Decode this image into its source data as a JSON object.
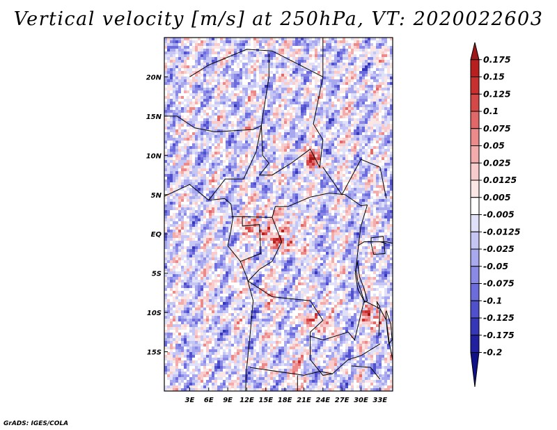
{
  "chart_data": {
    "type": "heatmap",
    "title": "Vertical velocity [m/s] at 250hPa, VT: 2020022603",
    "variable": "Vertical velocity",
    "units": "m/s",
    "level": "250hPa",
    "valid_time": "2020022603",
    "lon_range": [
      -1,
      35
    ],
    "lat_range": [
      -20,
      25
    ],
    "x_ticks": [
      {
        "value": 3,
        "label": "3E"
      },
      {
        "value": 6,
        "label": "6E"
      },
      {
        "value": 9,
        "label": "9E"
      },
      {
        "value": 12,
        "label": "12E"
      },
      {
        "value": 15,
        "label": "15E"
      },
      {
        "value": 18,
        "label": "18E"
      },
      {
        "value": 21,
        "label": "21E"
      },
      {
        "value": 24,
        "label": "24E"
      },
      {
        "value": 27,
        "label": "27E"
      },
      {
        "value": 30,
        "label": "30E"
      },
      {
        "value": 33,
        "label": "33E"
      }
    ],
    "y_ticks": [
      {
        "value": 20,
        "label": "20N"
      },
      {
        "value": 15,
        "label": "15N"
      },
      {
        "value": 10,
        "label": "10N"
      },
      {
        "value": 5,
        "label": "5N"
      },
      {
        "value": 0,
        "label": "EQ"
      },
      {
        "value": -5,
        "label": "5S"
      },
      {
        "value": -10,
        "label": "10S"
      },
      {
        "value": -15,
        "label": "15S"
      }
    ],
    "colorbar": {
      "labels": [
        "0.175",
        "0.15",
        "0.125",
        "0.1",
        "0.075",
        "0.05",
        "0.025",
        "0.0125",
        "0.005",
        "-0.005",
        "-0.0125",
        "-0.025",
        "-0.05",
        "-0.075",
        "-0.1",
        "-0.125",
        "-0.175",
        "-0.2"
      ],
      "colors": [
        "#9e1818",
        "#b82020",
        "#c83030",
        "#d44848",
        "#e06868",
        "#ea8a8a",
        "#f2acac",
        "#f8cccc",
        "#fbe6e6",
        "#ffffff",
        "#e0e0f8",
        "#c6c6f4",
        "#a8a8ee",
        "#8a8ae6",
        "#6c6cdc",
        "#5050cc",
        "#3636b8",
        "#2020a0",
        "#101088"
      ]
    },
    "dominant_sign": "negative (blue) over most of domain",
    "strong_positive_regions": [
      "Congo Basin near equator 10E-20E",
      "northern Zambia / Malawi ~10S-12S",
      "Chad/Sudan band ~9N-10N"
    ]
  },
  "credit": "GrADS: IGES/COLA"
}
